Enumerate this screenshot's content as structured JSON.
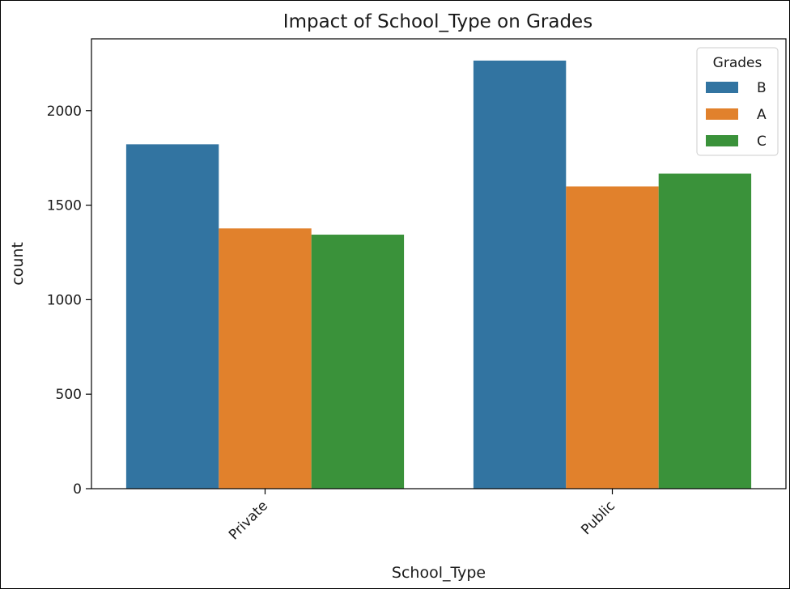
{
  "chart_data": {
    "type": "bar",
    "title": "Impact of School_Type on Grades",
    "xlabel": "School_Type",
    "ylabel": "count",
    "categories": [
      "Private",
      "Public"
    ],
    "series": [
      {
        "name": "B",
        "color": "#3274a1",
        "values": [
          1822,
          2265
        ]
      },
      {
        "name": "A",
        "color": "#e1812c",
        "values": [
          1377,
          1599
        ]
      },
      {
        "name": "C",
        "color": "#3a923a",
        "values": [
          1344,
          1667
        ]
      }
    ],
    "ylim": [
      0,
      2380
    ],
    "yticks": [
      0,
      500,
      1000,
      1500,
      2000
    ],
    "legend": {
      "title": "Grades",
      "position": "top-right"
    },
    "grid": false
  }
}
